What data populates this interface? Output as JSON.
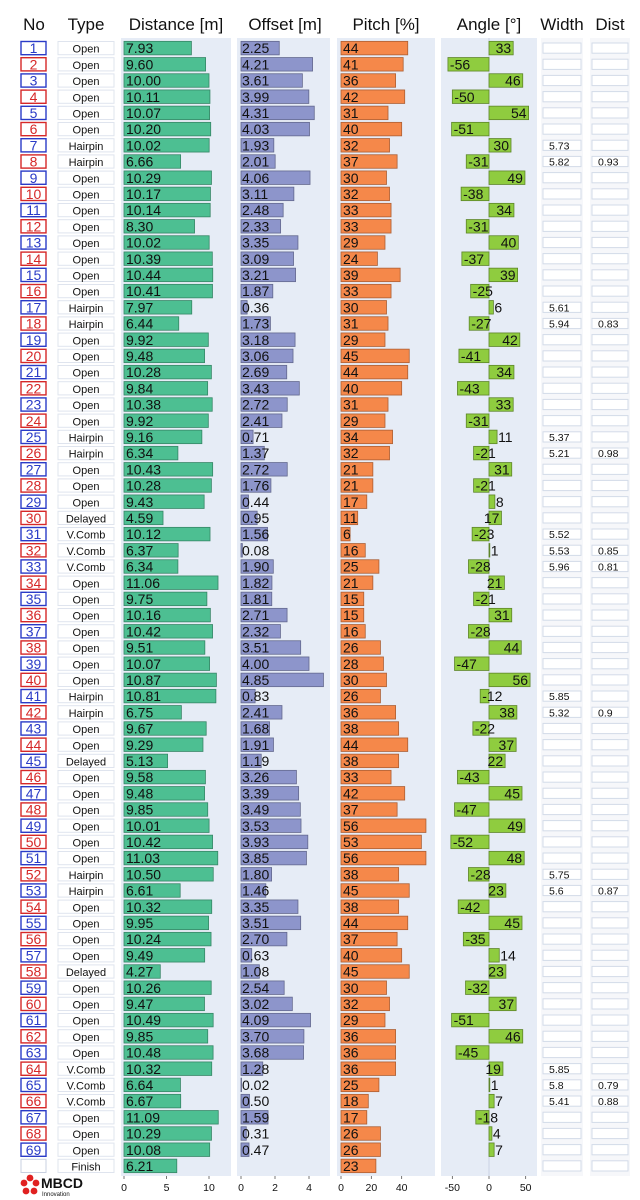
{
  "chart_data": {
    "type": "table",
    "headers": {
      "no": "No",
      "type": "Type",
      "distance": "Distance [m]",
      "offset": "Offset [m]",
      "pitch": "Pitch [%]",
      "angle": "Angle [°]",
      "width": "Width",
      "dist": "Dist"
    },
    "axes": {
      "distance": {
        "range": [
          0,
          12
        ],
        "ticks": [
          "0",
          "5",
          "10"
        ]
      },
      "offset": {
        "range": [
          0,
          5
        ],
        "ticks": [
          "0",
          "2",
          "4"
        ]
      },
      "pitch": {
        "range": [
          0,
          60
        ],
        "ticks": [
          "0",
          "20",
          "40"
        ]
      },
      "angle": {
        "range": [
          -60,
          60
        ],
        "ticks": [
          "-50",
          "0",
          "50"
        ]
      }
    },
    "colors": {
      "panel": "#e6ecf6",
      "distance": "#4dbf92",
      "offset": "#8d95cb",
      "pitch": "#f5884a",
      "angle": "#8fcc3f",
      "odd": "#2a3bc7",
      "even": "#d62828"
    },
    "rows": [
      {
        "no": "1",
        "type": "Open",
        "distance": 7.93,
        "offset": 2.25,
        "pitch": 44,
        "angle": 33,
        "width": "",
        "dist": ""
      },
      {
        "no": "2",
        "type": "Open",
        "distance": 9.6,
        "offset": 4.21,
        "pitch": 41,
        "angle": -56,
        "width": "",
        "dist": ""
      },
      {
        "no": "3",
        "type": "Open",
        "distance": 10.0,
        "offset": 3.61,
        "pitch": 36,
        "angle": 46,
        "width": "",
        "dist": ""
      },
      {
        "no": "4",
        "type": "Open",
        "distance": 10.11,
        "offset": 3.99,
        "pitch": 42,
        "angle": -50,
        "width": "",
        "dist": ""
      },
      {
        "no": "5",
        "type": "Open",
        "distance": 10.07,
        "offset": 4.31,
        "pitch": 31,
        "angle": 54,
        "width": "",
        "dist": ""
      },
      {
        "no": "6",
        "type": "Open",
        "distance": 10.2,
        "offset": 4.03,
        "pitch": 40,
        "angle": -51,
        "width": "",
        "dist": ""
      },
      {
        "no": "7",
        "type": "Hairpin",
        "distance": 10.02,
        "offset": 1.93,
        "pitch": 32,
        "angle": 30,
        "width": "5.73",
        "dist": ""
      },
      {
        "no": "8",
        "type": "Hairpin",
        "distance": 6.66,
        "offset": 2.01,
        "pitch": 37,
        "angle": -31,
        "width": "5.82",
        "dist": "0.93"
      },
      {
        "no": "9",
        "type": "Open",
        "distance": 10.29,
        "offset": 4.06,
        "pitch": 30,
        "angle": 49,
        "width": "",
        "dist": ""
      },
      {
        "no": "10",
        "type": "Open",
        "distance": 10.17,
        "offset": 3.11,
        "pitch": 32,
        "angle": -38,
        "width": "",
        "dist": ""
      },
      {
        "no": "11",
        "type": "Open",
        "distance": 10.14,
        "offset": 2.48,
        "pitch": 33,
        "angle": 34,
        "width": "",
        "dist": ""
      },
      {
        "no": "12",
        "type": "Open",
        "distance": 8.3,
        "offset": 2.33,
        "pitch": 33,
        "angle": -31,
        "width": "",
        "dist": ""
      },
      {
        "no": "13",
        "type": "Open",
        "distance": 10.02,
        "offset": 3.35,
        "pitch": 29,
        "angle": 40,
        "width": "",
        "dist": ""
      },
      {
        "no": "14",
        "type": "Open",
        "distance": 10.39,
        "offset": 3.09,
        "pitch": 24,
        "angle": -37,
        "width": "",
        "dist": ""
      },
      {
        "no": "15",
        "type": "Open",
        "distance": 10.44,
        "offset": 3.21,
        "pitch": 39,
        "angle": 39,
        "width": "",
        "dist": ""
      },
      {
        "no": "16",
        "type": "Open",
        "distance": 10.41,
        "offset": 1.87,
        "pitch": 33,
        "angle": -25,
        "width": "",
        "dist": ""
      },
      {
        "no": "17",
        "type": "Hairpin",
        "distance": 7.97,
        "offset": 0.36,
        "pitch": 30,
        "angle": 6,
        "width": "5.61",
        "dist": ""
      },
      {
        "no": "18",
        "type": "Hairpin",
        "distance": 6.44,
        "offset": 1.73,
        "pitch": 31,
        "angle": -27,
        "width": "5.94",
        "dist": "0.83"
      },
      {
        "no": "19",
        "type": "Open",
        "distance": 9.92,
        "offset": 3.18,
        "pitch": 29,
        "angle": 42,
        "width": "",
        "dist": ""
      },
      {
        "no": "20",
        "type": "Open",
        "distance": 9.48,
        "offset": 3.06,
        "pitch": 45,
        "angle": -41,
        "width": "",
        "dist": ""
      },
      {
        "no": "21",
        "type": "Open",
        "distance": 10.28,
        "offset": 2.69,
        "pitch": 44,
        "angle": 34,
        "width": "",
        "dist": ""
      },
      {
        "no": "22",
        "type": "Open",
        "distance": 9.84,
        "offset": 3.43,
        "pitch": 40,
        "angle": -43,
        "width": "",
        "dist": ""
      },
      {
        "no": "23",
        "type": "Open",
        "distance": 10.38,
        "offset": 2.72,
        "pitch": 31,
        "angle": 33,
        "width": "",
        "dist": ""
      },
      {
        "no": "24",
        "type": "Open",
        "distance": 9.92,
        "offset": 2.41,
        "pitch": 29,
        "angle": -31,
        "width": "",
        "dist": ""
      },
      {
        "no": "25",
        "type": "Hairpin",
        "distance": 9.16,
        "offset": 0.71,
        "pitch": 34,
        "angle": 11,
        "width": "5.37",
        "dist": ""
      },
      {
        "no": "26",
        "type": "Hairpin",
        "distance": 6.34,
        "offset": 1.37,
        "pitch": 32,
        "angle": -21,
        "width": "5.21",
        "dist": "0.98"
      },
      {
        "no": "27",
        "type": "Open",
        "distance": 10.43,
        "offset": 2.72,
        "pitch": 21,
        "angle": 31,
        "width": "",
        "dist": ""
      },
      {
        "no": "28",
        "type": "Open",
        "distance": 10.28,
        "offset": 1.76,
        "pitch": 21,
        "angle": -21,
        "width": "",
        "dist": ""
      },
      {
        "no": "29",
        "type": "Open",
        "distance": 9.43,
        "offset": 0.44,
        "pitch": 17,
        "angle": 8,
        "width": "",
        "dist": ""
      },
      {
        "no": "30",
        "type": "Delayed",
        "distance": 4.59,
        "offset": 0.95,
        "pitch": 11,
        "angle": 17,
        "width": "",
        "dist": ""
      },
      {
        "no": "31",
        "type": "V.Comb",
        "distance": 10.12,
        "offset": 1.56,
        "pitch": 6,
        "angle": -23,
        "width": "5.52",
        "dist": ""
      },
      {
        "no": "32",
        "type": "V.Comb",
        "distance": 6.37,
        "offset": 0.08,
        "pitch": 16,
        "angle": 1,
        "width": "5.53",
        "dist": "0.85"
      },
      {
        "no": "33",
        "type": "V.Comb",
        "distance": 6.34,
        "offset": 1.9,
        "pitch": 25,
        "angle": -28,
        "width": "5.96",
        "dist": "0.81"
      },
      {
        "no": "34",
        "type": "Open",
        "distance": 11.06,
        "offset": 1.82,
        "pitch": 21,
        "angle": 21,
        "width": "",
        "dist": ""
      },
      {
        "no": "35",
        "type": "Open",
        "distance": 9.75,
        "offset": 1.81,
        "pitch": 15,
        "angle": -21,
        "width": "",
        "dist": ""
      },
      {
        "no": "36",
        "type": "Open",
        "distance": 10.16,
        "offset": 2.71,
        "pitch": 15,
        "angle": 31,
        "width": "",
        "dist": ""
      },
      {
        "no": "37",
        "type": "Open",
        "distance": 10.42,
        "offset": 2.32,
        "pitch": 16,
        "angle": -28,
        "width": "",
        "dist": ""
      },
      {
        "no": "38",
        "type": "Open",
        "distance": 9.51,
        "offset": 3.51,
        "pitch": 26,
        "angle": 44,
        "width": "",
        "dist": ""
      },
      {
        "no": "39",
        "type": "Open",
        "distance": 10.07,
        "offset": 4.0,
        "pitch": 28,
        "angle": -47,
        "width": "",
        "dist": ""
      },
      {
        "no": "40",
        "type": "Open",
        "distance": 10.87,
        "offset": 4.85,
        "pitch": 30,
        "angle": 56,
        "width": "",
        "dist": ""
      },
      {
        "no": "41",
        "type": "Hairpin",
        "distance": 10.81,
        "offset": 0.83,
        "pitch": 26,
        "angle": -12,
        "width": "5.85",
        "dist": ""
      },
      {
        "no": "42",
        "type": "Hairpin",
        "distance": 6.75,
        "offset": 2.41,
        "pitch": 36,
        "angle": 38,
        "width": "5.32",
        "dist": "0.9"
      },
      {
        "no": "43",
        "type": "Open",
        "distance": 9.67,
        "offset": 1.68,
        "pitch": 38,
        "angle": -22,
        "width": "",
        "dist": ""
      },
      {
        "no": "44",
        "type": "Open",
        "distance": 9.29,
        "offset": 1.91,
        "pitch": 44,
        "angle": 37,
        "width": "",
        "dist": ""
      },
      {
        "no": "45",
        "type": "Delayed",
        "distance": 5.13,
        "offset": 1.19,
        "pitch": 38,
        "angle": 22,
        "width": "",
        "dist": ""
      },
      {
        "no": "46",
        "type": "Open",
        "distance": 9.58,
        "offset": 3.26,
        "pitch": 33,
        "angle": -43,
        "width": "",
        "dist": ""
      },
      {
        "no": "47",
        "type": "Open",
        "distance": 9.48,
        "offset": 3.39,
        "pitch": 42,
        "angle": 45,
        "width": "",
        "dist": ""
      },
      {
        "no": "48",
        "type": "Open",
        "distance": 9.85,
        "offset": 3.49,
        "pitch": 37,
        "angle": -47,
        "width": "",
        "dist": ""
      },
      {
        "no": "49",
        "type": "Open",
        "distance": 10.01,
        "offset": 3.53,
        "pitch": 56,
        "angle": 49,
        "width": "",
        "dist": ""
      },
      {
        "no": "50",
        "type": "Open",
        "distance": 10.42,
        "offset": 3.93,
        "pitch": 53,
        "angle": -52,
        "width": "",
        "dist": ""
      },
      {
        "no": "51",
        "type": "Open",
        "distance": 11.03,
        "offset": 3.85,
        "pitch": 56,
        "angle": 48,
        "width": "",
        "dist": ""
      },
      {
        "no": "52",
        "type": "Hairpin",
        "distance": 10.5,
        "offset": 1.8,
        "pitch": 38,
        "angle": -28,
        "width": "5.75",
        "dist": ""
      },
      {
        "no": "53",
        "type": "Hairpin",
        "distance": 6.61,
        "offset": 1.46,
        "pitch": 45,
        "angle": 23,
        "width": "5.6",
        "dist": "0.87"
      },
      {
        "no": "54",
        "type": "Open",
        "distance": 10.32,
        "offset": 3.35,
        "pitch": 38,
        "angle": -42,
        "width": "",
        "dist": ""
      },
      {
        "no": "55",
        "type": "Open",
        "distance": 9.95,
        "offset": 3.51,
        "pitch": 44,
        "angle": 45,
        "width": "",
        "dist": ""
      },
      {
        "no": "56",
        "type": "Open",
        "distance": 10.24,
        "offset": 2.7,
        "pitch": 37,
        "angle": -35,
        "width": "",
        "dist": ""
      },
      {
        "no": "57",
        "type": "Open",
        "distance": 9.49,
        "offset": 0.63,
        "pitch": 40,
        "angle": 14,
        "width": "",
        "dist": ""
      },
      {
        "no": "58",
        "type": "Delayed",
        "distance": 4.27,
        "offset": 1.08,
        "pitch": 45,
        "angle": 23,
        "width": "",
        "dist": ""
      },
      {
        "no": "59",
        "type": "Open",
        "distance": 10.26,
        "offset": 2.54,
        "pitch": 30,
        "angle": -32,
        "width": "",
        "dist": ""
      },
      {
        "no": "60",
        "type": "Open",
        "distance": 9.47,
        "offset": 3.02,
        "pitch": 32,
        "angle": 37,
        "width": "",
        "dist": ""
      },
      {
        "no": "61",
        "type": "Open",
        "distance": 10.49,
        "offset": 4.09,
        "pitch": 29,
        "angle": -51,
        "width": "",
        "dist": ""
      },
      {
        "no": "62",
        "type": "Open",
        "distance": 9.85,
        "offset": 3.7,
        "pitch": 36,
        "angle": 46,
        "width": "",
        "dist": ""
      },
      {
        "no": "63",
        "type": "Open",
        "distance": 10.48,
        "offset": 3.68,
        "pitch": 36,
        "angle": -45,
        "width": "",
        "dist": ""
      },
      {
        "no": "64",
        "type": "V.Comb",
        "distance": 10.32,
        "offset": 1.28,
        "pitch": 36,
        "angle": 19,
        "width": "5.85",
        "dist": ""
      },
      {
        "no": "65",
        "type": "V.Comb",
        "distance": 6.64,
        "offset": 0.02,
        "pitch": 25,
        "angle": 1,
        "width": "5.8",
        "dist": "0.79"
      },
      {
        "no": "66",
        "type": "V.Comb",
        "distance": 6.67,
        "offset": 0.5,
        "pitch": 18,
        "angle": 7,
        "width": "5.41",
        "dist": "0.88"
      },
      {
        "no": "67",
        "type": "Open",
        "distance": 11.09,
        "offset": 1.59,
        "pitch": 17,
        "angle": -18,
        "width": "",
        "dist": ""
      },
      {
        "no": "68",
        "type": "Open",
        "distance": 10.29,
        "offset": 0.31,
        "pitch": 26,
        "angle": 4,
        "width": "",
        "dist": ""
      },
      {
        "no": "69",
        "type": "Open",
        "distance": 10.08,
        "offset": 0.47,
        "pitch": 26,
        "angle": 7,
        "width": "",
        "dist": ""
      },
      {
        "no": "",
        "type": "Finish",
        "distance": 6.21,
        "offset": null,
        "pitch": 23,
        "angle": null,
        "width": "",
        "dist": ""
      }
    ]
  },
  "logo": {
    "title": "MBCD",
    "subtitle": "Innovation",
    "icon": "mbcd-logo-icon"
  }
}
